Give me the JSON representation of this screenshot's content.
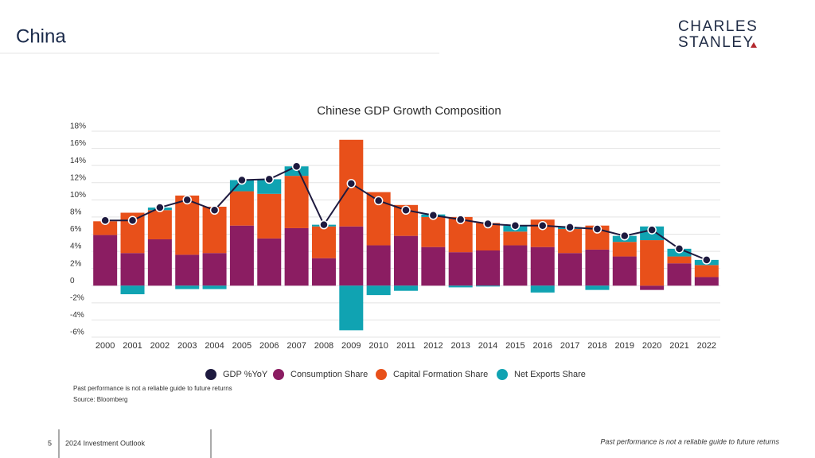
{
  "slide": {
    "title": "China",
    "logo": [
      "CHARLES",
      "STANLEY"
    ],
    "page_number": "5",
    "footer": "2024 Investment Outlook",
    "disclaimer": "Past performance is not a reliable guide to future returns"
  },
  "chart_data": {
    "type": "bar",
    "stacked": true,
    "title": "Chinese GDP Growth Composition",
    "notes": [
      "Past performance is not a reliable guide to future returns",
      "Source: Bloomberg"
    ],
    "categories": [
      "2000",
      "2001",
      "2002",
      "2003",
      "2004",
      "2005",
      "2006",
      "2007",
      "2008",
      "2009",
      "2010",
      "2011",
      "2012",
      "2013",
      "2014",
      "2015",
      "2016",
      "2017",
      "2018",
      "2019",
      "2020",
      "2021",
      "2022"
    ],
    "series": [
      {
        "name": "GDP %YoY",
        "type": "line",
        "color": "#1e1a3f",
        "values": [
          7.6,
          7.6,
          9.1,
          10.0,
          8.8,
          12.3,
          12.4,
          13.9,
          7.1,
          11.9,
          9.9,
          8.8,
          8.2,
          7.7,
          7.2,
          7.0,
          7.0,
          6.8,
          6.6,
          5.8,
          6.5,
          4.3,
          3.0
        ]
      },
      {
        "name": "Consumption Share",
        "type": "bar",
        "color": "#8b1d62",
        "values": [
          5.9,
          3.8,
          5.4,
          3.6,
          3.8,
          7.0,
          5.5,
          6.7,
          3.2,
          6.9,
          4.7,
          5.8,
          4.5,
          3.9,
          4.1,
          4.7,
          4.5,
          3.8,
          4.2,
          3.4,
          -0.5,
          2.6,
          1.0
        ]
      },
      {
        "name": "Capital Formation Share",
        "type": "bar",
        "color": "#e8501a",
        "values": [
          1.6,
          4.7,
          3.4,
          6.9,
          5.4,
          4.0,
          5.2,
          6.1,
          3.7,
          10.1,
          6.2,
          3.6,
          3.5,
          4.1,
          3.2,
          1.6,
          3.2,
          2.8,
          2.8,
          1.7,
          5.3,
          0.8,
          1.4
        ]
      },
      {
        "name": "Net Exports Share",
        "type": "bar",
        "color": "#10a3b2",
        "values": [
          0,
          -1.0,
          0.3,
          -0.4,
          -0.4,
          1.3,
          1.7,
          1.1,
          0.2,
          -5.2,
          -1.1,
          -0.6,
          0.3,
          -0.2,
          -0.1,
          0.7,
          -0.8,
          0.2,
          -0.5,
          0.7,
          1.6,
          0.9,
          0.6
        ]
      }
    ],
    "ylim": [
      -6,
      18
    ],
    "yticks": [
      {
        "value": 18,
        "label": "18%"
      },
      {
        "value": 16,
        "label": "16%"
      },
      {
        "value": 14,
        "label": "14%"
      },
      {
        "value": 12,
        "label": "12%"
      },
      {
        "value": 10,
        "label": "10%"
      },
      {
        "value": 8,
        "label": "8%"
      },
      {
        "value": 6,
        "label": "6%"
      },
      {
        "value": 4,
        "label": "4%"
      },
      {
        "value": 2,
        "label": "2%"
      },
      0,
      {
        "value": -2,
        "label": "-2%"
      },
      {
        "value": -4,
        "label": "-4%"
      },
      {
        "value": -6,
        "label": "-6%"
      }
    ],
    "grid": true,
    "legend": "bottom"
  }
}
